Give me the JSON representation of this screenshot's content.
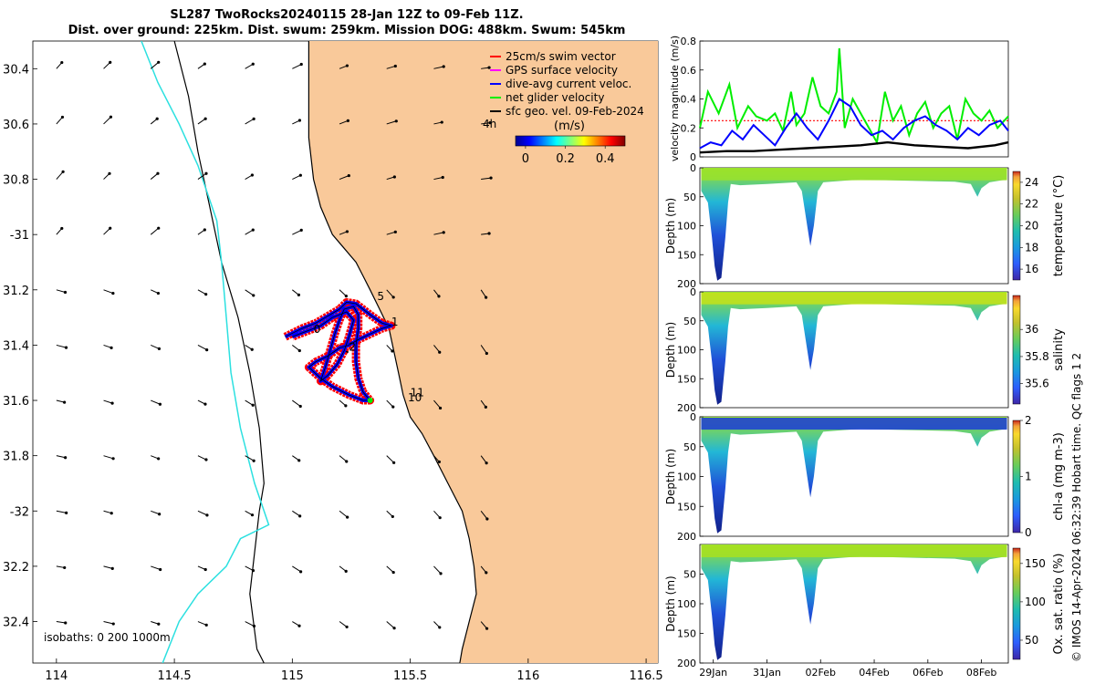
{
  "figure": {
    "title_line1": "SL287 TwoRocks20240115 28-Jan 12Z to 09-Feb 11Z.",
    "title_line2": "Dist. over ground: 225km. Dist. swum: 259km. Mission DOG: 488km. Swum: 545km",
    "footer": "© IMOS 14-Apr-2024 06:32:39 Hobart time. QC flags 1  2",
    "colors": {
      "land": "#f9c99a",
      "coast": "#000000",
      "isobath_200": "#000000",
      "isobath_1000": "#2ce0e0",
      "swim": "#ff0000",
      "gps": "#ff00ff",
      "current": "#0000ff",
      "net": "#00ee00",
      "geo": "#000000"
    }
  },
  "chart_data": [
    {
      "type": "map",
      "name": "glider-track-map",
      "xlim": [
        113.9,
        116.55
      ],
      "ylim": [
        -32.55,
        -30.3
      ],
      "x_ticks": [
        114,
        114.5,
        115,
        115.5,
        116,
        116.5
      ],
      "x_tick_labels": [
        "114",
        "114.5",
        "115",
        "115.5",
        "116",
        "116.5"
      ],
      "y_ticks": [
        -30.4,
        -30.6,
        -30.8,
        -31,
        -31.2,
        -31.4,
        -31.6,
        -31.8,
        -32,
        -32.2,
        -32.4
      ],
      "y_tick_labels": [
        "30.4",
        "30.6",
        "30.8",
        "-31",
        "31.2",
        "31.4",
        "31.6",
        "31.8",
        "-32",
        "32.2",
        "32.4"
      ],
      "isobath_label": "isobaths: 0   200  1000m",
      "legend": [
        {
          "label": "25cm/s swim vector",
          "color": "#ff0000"
        },
        {
          "label": "GPS surface velocity",
          "color": "#ff00ff"
        },
        {
          "label": "dive-avg current veloc.",
          "color": "#0000ff"
        },
        {
          "label": "net glider velocity",
          "color": "#00ee00"
        },
        {
          "label": "sfc geo. vel. 09-Feb-2024",
          "color": "#000000"
        }
      ],
      "legend_aux_label": "4h",
      "colorbar": {
        "label": "(m/s)",
        "ticks": [
          "0",
          "0.2",
          "0.4"
        ],
        "range": [
          -0.05,
          0.5
        ]
      },
      "day_labels": [
        {
          "text": "5",
          "lon": 115.36,
          "lat": -31.237
        },
        {
          "text": "1",
          "lon": 115.42,
          "lat": -31.33
        },
        {
          "text": "0",
          "lon": 115.09,
          "lat": -31.355
        },
        {
          "text": "2",
          "lon": 115.24,
          "lat": -31.42
        },
        {
          "text": "11",
          "lon": 115.5,
          "lat": -31.585
        },
        {
          "text": "10",
          "lon": 115.49,
          "lat": -31.603
        }
      ],
      "track": [
        [
          114.97,
          -31.37
        ],
        [
          115.04,
          -31.34
        ],
        [
          115.1,
          -31.32
        ],
        [
          115.16,
          -31.29
        ],
        [
          115.2,
          -31.27
        ],
        [
          115.23,
          -31.245
        ],
        [
          115.27,
          -31.25
        ],
        [
          115.33,
          -31.29
        ],
        [
          115.38,
          -31.32
        ],
        [
          115.42,
          -31.33
        ],
        [
          115.38,
          -31.34
        ],
        [
          115.33,
          -31.36
        ],
        [
          115.28,
          -31.38
        ],
        [
          115.24,
          -31.4
        ],
        [
          115.2,
          -31.41
        ],
        [
          115.15,
          -31.44
        ],
        [
          115.1,
          -31.46
        ],
        [
          115.07,
          -31.48
        ],
        [
          115.12,
          -31.52
        ],
        [
          115.17,
          -31.55
        ],
        [
          115.24,
          -31.58
        ],
        [
          115.3,
          -31.6
        ],
        [
          115.33,
          -31.6
        ],
        [
          115.3,
          -31.57
        ],
        [
          115.28,
          -31.52
        ],
        [
          115.27,
          -31.46
        ],
        [
          115.27,
          -31.4
        ],
        [
          115.28,
          -31.34
        ],
        [
          115.28,
          -31.29
        ],
        [
          115.26,
          -31.26
        ],
        [
          115.22,
          -31.27
        ],
        [
          115.2,
          -31.31
        ],
        [
          115.18,
          -31.36
        ],
        [
          115.16,
          -31.42
        ],
        [
          115.14,
          -31.48
        ],
        [
          115.12,
          -31.53
        ],
        [
          115.15,
          -31.51
        ],
        [
          115.19,
          -31.47
        ],
        [
          115.22,
          -31.42
        ],
        [
          115.24,
          -31.37
        ],
        [
          115.26,
          -31.31
        ],
        [
          115.23,
          -31.28
        ],
        [
          115.17,
          -31.3
        ],
        [
          115.12,
          -31.33
        ],
        [
          115.06,
          -31.35
        ],
        [
          115.0,
          -31.37
        ]
      ],
      "coast": [
        [
          115.07,
          -30.3
        ],
        [
          115.07,
          -30.5
        ],
        [
          115.07,
          -30.65
        ],
        [
          115.09,
          -30.8
        ],
        [
          115.12,
          -30.9
        ],
        [
          115.17,
          -31.0
        ],
        [
          115.22,
          -31.05
        ],
        [
          115.27,
          -31.1
        ],
        [
          115.3,
          -31.15
        ],
        [
          115.33,
          -31.2
        ],
        [
          115.37,
          -31.27
        ],
        [
          115.41,
          -31.34
        ],
        [
          115.43,
          -31.42
        ],
        [
          115.45,
          -31.5
        ],
        [
          115.47,
          -31.58
        ],
        [
          115.5,
          -31.66
        ],
        [
          115.55,
          -31.72
        ],
        [
          115.6,
          -31.8
        ],
        [
          115.66,
          -31.9
        ],
        [
          115.72,
          -32.0
        ],
        [
          115.75,
          -32.1
        ],
        [
          115.77,
          -32.2
        ],
        [
          115.78,
          -32.3
        ],
        [
          115.75,
          -32.4
        ],
        [
          115.72,
          -32.5
        ],
        [
          115.71,
          -32.55
        ]
      ],
      "isobath_200": [
        [
          114.5,
          -30.3
        ],
        [
          114.56,
          -30.5
        ],
        [
          114.6,
          -30.7
        ],
        [
          114.65,
          -30.9
        ],
        [
          114.7,
          -31.1
        ],
        [
          114.77,
          -31.3
        ],
        [
          114.82,
          -31.5
        ],
        [
          114.86,
          -31.7
        ],
        [
          114.88,
          -31.9
        ],
        [
          114.86,
          -32.0
        ],
        [
          114.84,
          -32.15
        ],
        [
          114.82,
          -32.3
        ],
        [
          114.85,
          -32.5
        ],
        [
          114.88,
          -32.55
        ]
      ],
      "isobath_1000": [
        [
          114.36,
          -30.3
        ],
        [
          114.43,
          -30.45
        ],
        [
          114.52,
          -30.6
        ],
        [
          114.6,
          -30.75
        ],
        [
          114.68,
          -30.95
        ],
        [
          114.7,
          -31.1
        ],
        [
          114.72,
          -31.3
        ],
        [
          114.74,
          -31.5
        ],
        [
          114.78,
          -31.7
        ],
        [
          114.84,
          -31.9
        ],
        [
          114.9,
          -32.05
        ],
        [
          114.78,
          -32.1
        ],
        [
          114.72,
          -32.2
        ],
        [
          114.6,
          -32.3
        ],
        [
          114.52,
          -32.4
        ],
        [
          114.45,
          -32.55
        ]
      ],
      "vector_lons": [
        114.0,
        114.2,
        114.4,
        114.6,
        114.8,
        115.0,
        115.2,
        115.4,
        115.6,
        115.8
      ],
      "vector_lats": [
        -30.4,
        -30.6,
        -30.8,
        -31.0,
        -31.2,
        -31.4,
        -31.6,
        -31.8,
        -32.0,
        -32.2,
        -32.4
      ]
    },
    {
      "type": "line",
      "name": "velocity-magnitude",
      "ylabel": "velocity magnitude (m/s)",
      "ylim": [
        0,
        0.8
      ],
      "y_ticks": [
        0,
        0.2,
        0.4,
        0.6,
        0.8
      ],
      "y_tick_labels": [
        "0",
        "0.2",
        "0.4",
        "0.6",
        "0.8"
      ],
      "xlim": [
        28.5,
        40.0
      ],
      "x_ticks": [
        29,
        31,
        33,
        35,
        37,
        39
      ],
      "x_tick_labels": [
        "29Jan",
        "31Jan",
        "02Feb",
        "04Feb",
        "06Feb",
        "08Feb"
      ],
      "series": [
        {
          "color": "#ff0000",
          "x": [
            28.5,
            40.0
          ],
          "values": [
            0.25,
            0.25
          ]
        },
        {
          "color": "#00ee00",
          "x": [
            28.5,
            28.8,
            29.2,
            29.6,
            29.9,
            30.3,
            30.6,
            31.0,
            31.3,
            31.6,
            31.9,
            32.1,
            32.4,
            32.7,
            33.0,
            33.3,
            33.6,
            33.7,
            33.9,
            34.2,
            34.5,
            34.8,
            35.1,
            35.4,
            35.7,
            36.0,
            36.3,
            36.6,
            36.9,
            37.2,
            37.5,
            37.8,
            38.1,
            38.4,
            38.7,
            39.0,
            39.3,
            39.6,
            40.0
          ],
          "values": [
            0.2,
            0.45,
            0.3,
            0.5,
            0.2,
            0.35,
            0.28,
            0.25,
            0.3,
            0.18,
            0.45,
            0.22,
            0.3,
            0.55,
            0.35,
            0.3,
            0.45,
            0.75,
            0.2,
            0.4,
            0.3,
            0.2,
            0.1,
            0.45,
            0.25,
            0.35,
            0.15,
            0.3,
            0.38,
            0.2,
            0.3,
            0.35,
            0.12,
            0.4,
            0.3,
            0.25,
            0.32,
            0.2,
            0.28
          ]
        },
        {
          "color": "#0000ff",
          "x": [
            28.5,
            28.9,
            29.3,
            29.7,
            30.1,
            30.5,
            30.9,
            31.3,
            31.7,
            32.1,
            32.5,
            32.9,
            33.3,
            33.7,
            34.1,
            34.5,
            34.9,
            35.3,
            35.7,
            36.1,
            36.5,
            36.9,
            37.3,
            37.7,
            38.1,
            38.5,
            38.9,
            39.3,
            39.7,
            40.0
          ],
          "values": [
            0.06,
            0.1,
            0.08,
            0.18,
            0.12,
            0.22,
            0.15,
            0.08,
            0.2,
            0.3,
            0.2,
            0.12,
            0.25,
            0.4,
            0.35,
            0.22,
            0.15,
            0.18,
            0.12,
            0.2,
            0.25,
            0.28,
            0.22,
            0.18,
            0.12,
            0.2,
            0.15,
            0.22,
            0.25,
            0.18
          ]
        },
        {
          "color": "#000000",
          "x": [
            28.5,
            29.5,
            30.5,
            31.5,
            32.5,
            33.5,
            34.5,
            35.5,
            36.5,
            37.5,
            38.5,
            39.5,
            40.0
          ],
          "values": [
            0.03,
            0.04,
            0.04,
            0.05,
            0.06,
            0.07,
            0.08,
            0.1,
            0.08,
            0.07,
            0.06,
            0.08,
            0.1
          ]
        }
      ]
    },
    {
      "type": "heatmap",
      "name": "temperature-section",
      "ylabel": "Depth (m)",
      "colorbar_label": "temperature (°C)",
      "clim": [
        15,
        25
      ],
      "colorbar_ticks": [
        16,
        18,
        20,
        22,
        24
      ],
      "colorbar_tick_labels": [
        "16",
        "18",
        "20",
        "22",
        "24"
      ],
      "surface_color": "#9be22a",
      "y_ticks": [
        0,
        50,
        100,
        150,
        200
      ],
      "y_tick_labels": [
        "0",
        "50",
        "100",
        "150",
        "200"
      ]
    },
    {
      "type": "heatmap",
      "name": "salinity-section",
      "ylabel": "Depth (m)",
      "colorbar_label": "salinity",
      "clim": [
        35.45,
        36.25
      ],
      "colorbar_ticks": [
        35.6,
        35.8,
        36.0
      ],
      "colorbar_tick_labels": [
        "35.6",
        "35.8",
        "36"
      ],
      "surface_color": "#c6e21a",
      "y_ticks": [
        0,
        50,
        100,
        150,
        200
      ],
      "y_tick_labels": [
        "0",
        "50",
        "100",
        "150",
        "200"
      ]
    },
    {
      "type": "heatmap",
      "name": "chl-a-section",
      "ylabel": "Depth (m)",
      "colorbar_label": "chl-a (mg m-3)",
      "clim": [
        0,
        2
      ],
      "colorbar_ticks": [
        0,
        1,
        2
      ],
      "colorbar_tick_labels": [
        "0",
        "1",
        "2"
      ],
      "surface_color": "#1a3ad8",
      "y_ticks": [
        0,
        50,
        100,
        150,
        200
      ],
      "y_tick_labels": [
        "0",
        "50",
        "100",
        "150",
        "200"
      ]
    },
    {
      "type": "heatmap",
      "name": "oxygen-section",
      "ylabel": "Depth (m)",
      "colorbar_label": "Ox. sat. ratio (%)",
      "clim": [
        25,
        170
      ],
      "colorbar_ticks": [
        50,
        100,
        150
      ],
      "colorbar_tick_labels": [
        "50",
        "100",
        "150"
      ],
      "surface_color": "#a8e020",
      "y_ticks": [
        50,
        100,
        150,
        200
      ],
      "y_tick_labels": [
        "50",
        "100",
        "150",
        "200"
      ]
    }
  ]
}
